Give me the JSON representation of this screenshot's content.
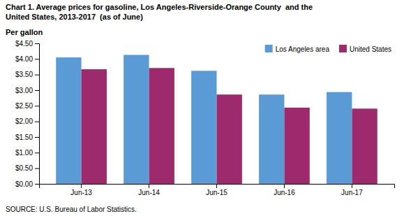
{
  "chart_data": {
    "type": "bar",
    "title": "Chart 1. Average prices for gasoline, Los Angeles-Riverside-Orange County  and the\nUnited States, 2013-2017  (as of June)",
    "ylabel": "Per gallon",
    "annotations": [
      "SOURCE: U.S. Bureau of Labor Statistics."
    ],
    "categories": [
      "Jun-13",
      "Jun-14",
      "Jun-15",
      "Jun-16",
      "Jun-17"
    ],
    "series": [
      {
        "name": "Los Angeles area",
        "color": "#5B9BD5",
        "values": [
          4.05,
          4.13,
          3.62,
          2.86,
          2.94
        ]
      },
      {
        "name": "United States",
        "color": "#9E2A6E",
        "values": [
          3.67,
          3.71,
          2.86,
          2.44,
          2.41
        ]
      }
    ],
    "ylim": [
      0,
      4.5
    ],
    "yticks": [
      {
        "value": 0,
        "label": "$0.00"
      },
      {
        "value": 0.5,
        "label": "$0.50"
      },
      {
        "value": 1,
        "label": "$1.00"
      },
      {
        "value": 1.5,
        "label": "$1.50"
      },
      {
        "value": 2,
        "label": "$2.00"
      },
      {
        "value": 2.5,
        "label": "$2.50"
      },
      {
        "value": 3,
        "label": "$3.00"
      },
      {
        "value": 3.5,
        "label": "$3.50"
      },
      {
        "value": 4,
        "label": "$4.00"
      },
      {
        "value": 4.5,
        "label": "$4.50"
      }
    ],
    "grid": false,
    "legend": "upper right"
  }
}
